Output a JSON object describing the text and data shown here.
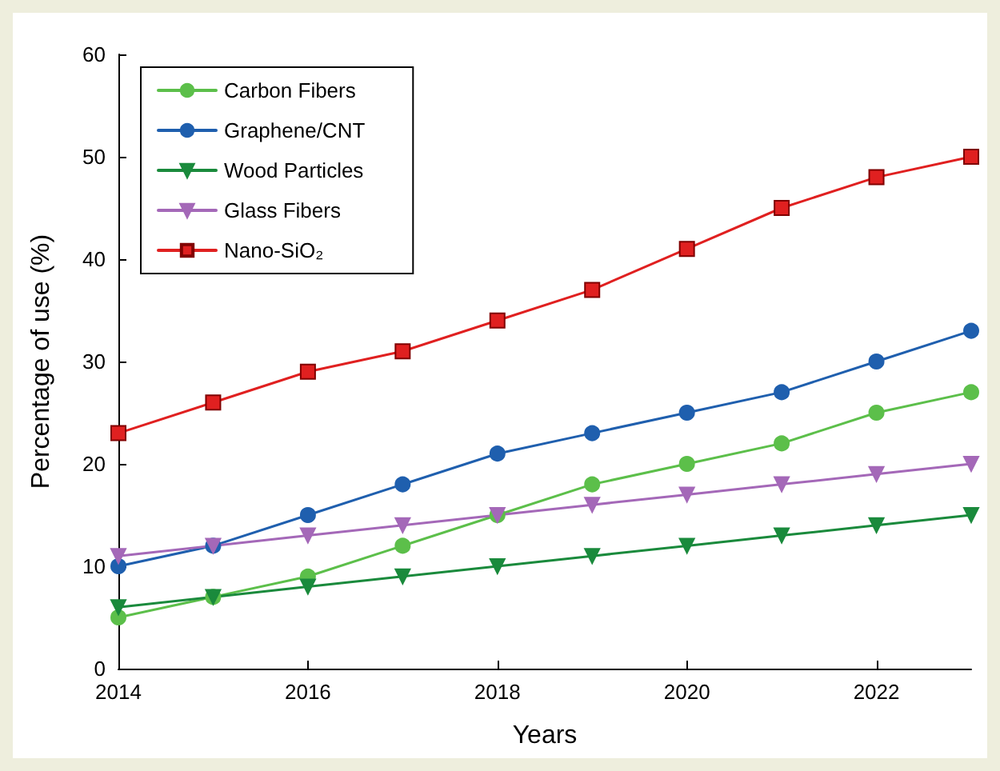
{
  "chart_data": {
    "type": "line",
    "xlabel": "Years",
    "ylabel": "Percentage of use (%)",
    "x": [
      2014,
      2015,
      2016,
      2017,
      2018,
      2019,
      2020,
      2021,
      2022,
      2023
    ],
    "xlim": [
      2014,
      2023
    ],
    "xticks": [
      2014,
      2016,
      2018,
      2020,
      2022
    ],
    "ylim": [
      0,
      60
    ],
    "yticks": [
      0,
      10,
      20,
      30,
      40,
      50,
      60
    ],
    "grid": false,
    "legend": "top left",
    "series": [
      {
        "name": "Carbon Fibers",
        "color": "#5cbf4a",
        "marker": "circle",
        "values": [
          5,
          7,
          9,
          12,
          15,
          18,
          20,
          22,
          25,
          27
        ]
      },
      {
        "name": "Graphene/CNT",
        "color": "#1f5fae",
        "marker": "circle",
        "values": [
          10,
          12,
          15,
          18,
          21,
          23,
          25,
          27,
          30,
          33
        ]
      },
      {
        "name": "Wood Particles",
        "color": "#1a8a3c",
        "marker": "triangle",
        "values": [
          6,
          7,
          8,
          9,
          10,
          11,
          12,
          13,
          14,
          15
        ]
      },
      {
        "name": "Glass Fibers",
        "color": "#a468b8",
        "marker": "triangle",
        "values": [
          11,
          12,
          13,
          14,
          15,
          16,
          17,
          18,
          19,
          20
        ]
      },
      {
        "name": "Nano-SiO₂",
        "color": "#e02020",
        "marker": "square",
        "values": [
          23,
          26,
          29,
          31,
          34,
          37,
          41,
          45,
          48,
          50
        ]
      }
    ]
  }
}
